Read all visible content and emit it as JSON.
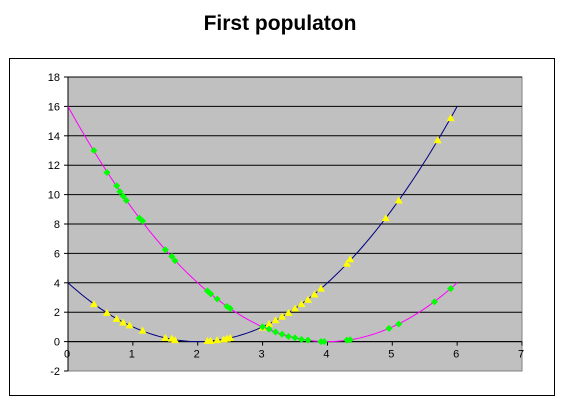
{
  "chart_data": {
    "type": "scatter",
    "title": "First populaton",
    "xlim": [
      0,
      7
    ],
    "ylim": [
      -2,
      18
    ],
    "xticks": [
      0,
      1,
      2,
      3,
      4,
      5,
      6,
      7
    ],
    "yticks": [
      -2,
      0,
      2,
      4,
      6,
      8,
      10,
      12,
      14,
      16,
      18
    ],
    "grid": "horizontal",
    "colors": {
      "plot_bg": "#c0c0c0",
      "curve_a": "#000080",
      "curve_b": "#ff00ff",
      "points_a": "#ffff00",
      "points_b": "#00ff00"
    },
    "curves": [
      {
        "formula": "(x-2)^2",
        "x_range": [
          0,
          6
        ],
        "color": "#000080"
      },
      {
        "formula": "(x-4)^2",
        "x_range": [
          0,
          6
        ],
        "color": "#ff00ff"
      }
    ],
    "series": [
      {
        "marker": "triangle",
        "color": "#ffff00",
        "x": [
          0.4,
          0.6,
          0.75,
          0.85,
          0.95,
          1.15,
          1.5,
          1.6,
          1.65,
          2.15,
          2.2,
          2.3,
          2.4,
          2.45,
          2.5,
          3.0,
          3.1,
          3.2,
          3.3,
          3.4,
          3.5,
          3.6,
          3.7,
          3.8,
          3.9,
          4.3,
          4.35,
          4.9,
          5.1,
          5.7,
          5.9
        ],
        "y": [
          2.55,
          1.95,
          1.55,
          1.3,
          1.1,
          0.75,
          0.25,
          0.2,
          0.1,
          0.05,
          0.05,
          0.1,
          0.15,
          0.2,
          0.25,
          0.95,
          1.2,
          1.45,
          1.7,
          1.95,
          2.25,
          2.55,
          2.85,
          3.2,
          3.6,
          5.3,
          5.6,
          8.4,
          9.6,
          13.7,
          15.2
        ]
      },
      {
        "marker": "diamond",
        "color": "#00ff00",
        "x": [
          0.4,
          0.6,
          0.75,
          0.8,
          0.85,
          0.9,
          1.1,
          1.15,
          1.5,
          1.6,
          1.65,
          2.15,
          2.2,
          2.3,
          2.45,
          2.5,
          3.0,
          3.1,
          3.2,
          3.3,
          3.4,
          3.5,
          3.6,
          3.7,
          3.9,
          3.95,
          4.3,
          4.35,
          4.95,
          5.1,
          5.65,
          5.9
        ],
        "y": [
          13.0,
          11.5,
          10.6,
          10.2,
          9.9,
          9.6,
          8.4,
          8.2,
          6.25,
          5.8,
          5.5,
          3.45,
          3.25,
          2.9,
          2.4,
          2.25,
          1.0,
          0.85,
          0.65,
          0.5,
          0.35,
          0.25,
          0.15,
          0.1,
          0.0,
          0.0,
          0.1,
          0.12,
          0.9,
          1.2,
          2.7,
          3.6
        ]
      }
    ]
  }
}
